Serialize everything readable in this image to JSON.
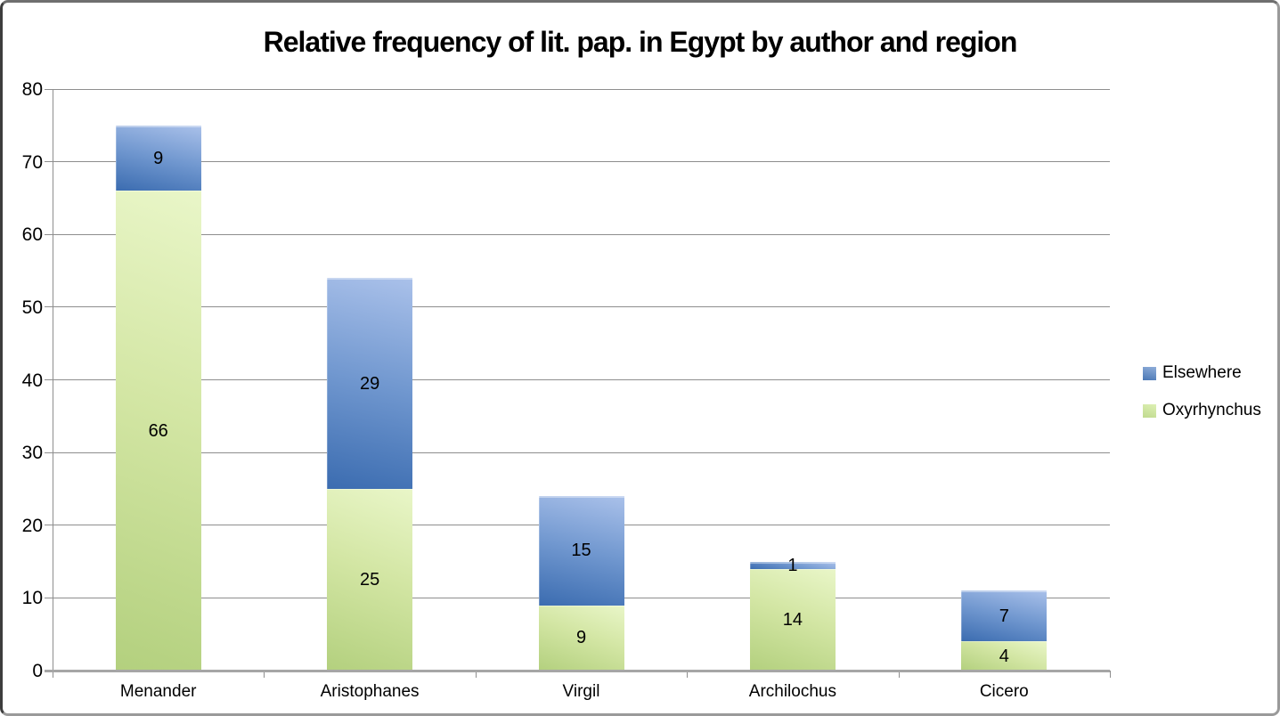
{
  "title": "Relative frequency of lit. pap. in Egypt by author and region",
  "colors": {
    "elsewhere_gradient_top": "#aac1ea",
    "elsewhere_gradient_bottom": "#3b6cb0",
    "oxyrhynchus_gradient_top": "#e9f6c8",
    "oxyrhynchus_gradient_bottom": "#b3d07e",
    "gridline": "#8e8e8e",
    "axis_baseline": "#a6a6a6",
    "text": "#000000",
    "background": "#ffffff"
  },
  "legend": {
    "position": "right",
    "items": [
      {
        "label": "Elsewhere",
        "series": "Elsewhere",
        "swatch": "blue-square-icon"
      },
      {
        "label": "Oxyrhynchus",
        "series": "Oxyrhynchus",
        "swatch": "green-square-icon"
      }
    ]
  },
  "chart_data": {
    "type": "bar",
    "stacked": true,
    "title": "Relative frequency of lit. pap. in Egypt by author and region",
    "categories": [
      "Menander",
      "Aristophanes",
      "Virgil",
      "Archilochus",
      "Cicero"
    ],
    "series": [
      {
        "name": "Oxyrhynchus",
        "values": [
          66,
          25,
          9,
          14,
          4
        ]
      },
      {
        "name": "Elsewhere",
        "values": [
          9,
          29,
          15,
          1,
          7
        ]
      }
    ],
    "totals": [
      75,
      54,
      24,
      15,
      11
    ],
    "ylim": [
      0,
      80
    ],
    "ytick_step": 10,
    "ytick_labels": [
      "0",
      "10",
      "20",
      "30",
      "40",
      "50",
      "60",
      "70",
      "80"
    ],
    "xlabel": "",
    "ylabel": "",
    "grid": "horizontal",
    "legend_position": "right",
    "data_labels": true
  }
}
